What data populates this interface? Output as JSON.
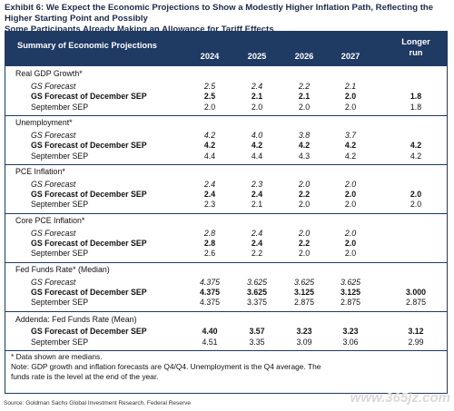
{
  "title_line1": "Exhibit 6: We Expect the Economic Projections to Show a Modestly Higher Inflation Path, Reflecting the Higher Starting Point and Possibly",
  "title_line2": "Some Participants Already Making an Allowance for Tariff Effects",
  "table_title": "Summary of Economic Projections",
  "years": [
    "2024",
    "2025",
    "2026",
    "2027"
  ],
  "longer_run_line1": "Longer",
  "longer_run_line2": "run",
  "sections": [
    {
      "name": "Real GDP Growth*",
      "rows": [
        {
          "label": "GS Forecast",
          "values": [
            "2.5",
            "2.4",
            "2.2",
            "2.1"
          ],
          "longer": ""
        },
        {
          "label": "GS Forecast of December SEP",
          "values": [
            "2.5",
            "2.1",
            "2.1",
            "2.0"
          ],
          "longer": "1.8"
        },
        {
          "label": "September SEP",
          "values": [
            "2.0",
            "2.0",
            "2.0",
            "2.0"
          ],
          "longer": "1.8"
        }
      ]
    },
    {
      "name": "Unemployment*",
      "rows": [
        {
          "label": "GS Forecast",
          "values": [
            "4.2",
            "4.0",
            "3.8",
            "3.7"
          ],
          "longer": ""
        },
        {
          "label": "GS Forecast of December SEP",
          "values": [
            "4.2",
            "4.2",
            "4.2",
            "4.2"
          ],
          "longer": "4.2"
        },
        {
          "label": "September SEP",
          "values": [
            "4.4",
            "4.4",
            "4.3",
            "4.2"
          ],
          "longer": "4.2"
        }
      ]
    },
    {
      "name": "PCE Inflation*",
      "rows": [
        {
          "label": "GS Forecast",
          "values": [
            "2.4",
            "2.3",
            "2.0",
            "2.0"
          ],
          "longer": ""
        },
        {
          "label": "GS Forecast of December SEP",
          "values": [
            "2.4",
            "2.4",
            "2.2",
            "2.0"
          ],
          "longer": "2.0"
        },
        {
          "label": "September SEP",
          "values": [
            "2.3",
            "2.1",
            "2.0",
            "2.0"
          ],
          "longer": "2.0"
        }
      ]
    },
    {
      "name": "Core PCE Inflation*",
      "rows": [
        {
          "label": "GS Forecast",
          "values": [
            "2.8",
            "2.4",
            "2.0",
            "2.0"
          ],
          "longer": ""
        },
        {
          "label": "GS Forecast of December SEP",
          "values": [
            "2.8",
            "2.4",
            "2.2",
            "2.0"
          ],
          "longer": ""
        },
        {
          "label": "September SEP",
          "values": [
            "2.6",
            "2.2",
            "2.0",
            "2.0"
          ],
          "longer": ""
        }
      ]
    },
    {
      "name": "Fed Funds Rate* (Median)",
      "rows": [
        {
          "label": "GS Forecast",
          "values": [
            "4.375",
            "3.625",
            "3.625",
            "3.625"
          ],
          "longer": ""
        },
        {
          "label": "GS Forecast of December SEP",
          "values": [
            "4.375",
            "3.625",
            "3.125",
            "3.125"
          ],
          "longer": "3.000"
        },
        {
          "label": "September SEP",
          "values": [
            "4.375",
            "3.375",
            "2.875",
            "2.875"
          ],
          "longer": "2.875"
        }
      ]
    }
  ],
  "addenda": {
    "name": "Addenda: Fed Funds Rate (Mean)",
    "rows": [
      {
        "label": "GS Forecast of December SEP",
        "values": [
          "4.40",
          "3.57",
          "3.23",
          "3.23"
        ],
        "longer": "3.12"
      },
      {
        "label": "September SEP",
        "values": [
          "4.51",
          "3.35",
          "3.09",
          "3.06"
        ],
        "longer": "2.99"
      }
    ]
  },
  "note1": "* Data shown are medians.",
  "note2": "Note: GDP growth and inflation forecasts are Q4/Q4.  Unemployment is the Q4 average.  The",
  "note3": "funds rate is the level at the end of the year.",
  "source": "Source: Goldman Sachs Global Investment Research, Federal Reserve",
  "watermark": "www.365jz.com"
}
